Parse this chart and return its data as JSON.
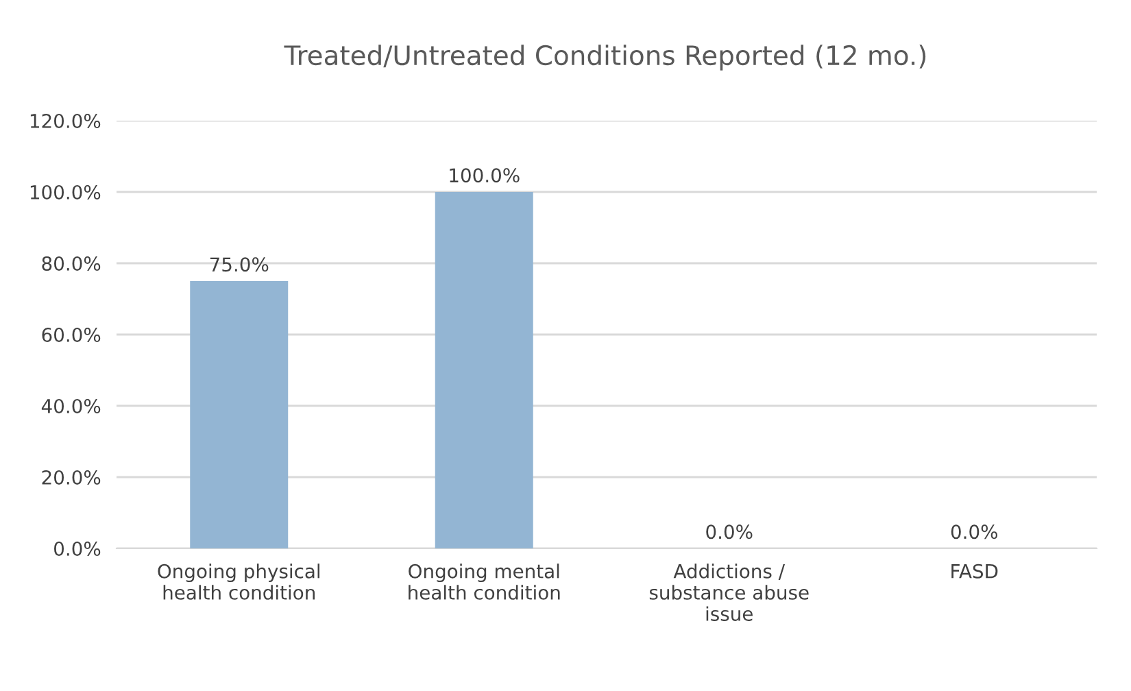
{
  "chart_data": {
    "type": "bar",
    "title": "Treated/Untreated Conditions Reported (12 mo.)",
    "categories": [
      "Ongoing physical health condition",
      "Ongoing mental health condition",
      "Addictions / substance abuse issue",
      "FASD"
    ],
    "values": [
      75,
      100,
      0,
      0
    ],
    "color": "#93b5d3",
    "value_labels": [
      "75.0%",
      "100.0%",
      "0.0%",
      "0.0%"
    ],
    "ylim": [
      0,
      120
    ],
    "yticks": [
      {
        "value": 0,
        "label": "0.0%"
      },
      {
        "value": 20,
        "label": "20.0%"
      },
      {
        "value": 40,
        "label": "40.0%"
      },
      {
        "value": 60,
        "label": "60.0%"
      },
      {
        "value": 80,
        "label": "80.0%"
      },
      {
        "value": 100,
        "label": "100.0%"
      },
      {
        "value": 120,
        "label": "120.0%"
      }
    ],
    "grid": "y",
    "legend": false
  }
}
